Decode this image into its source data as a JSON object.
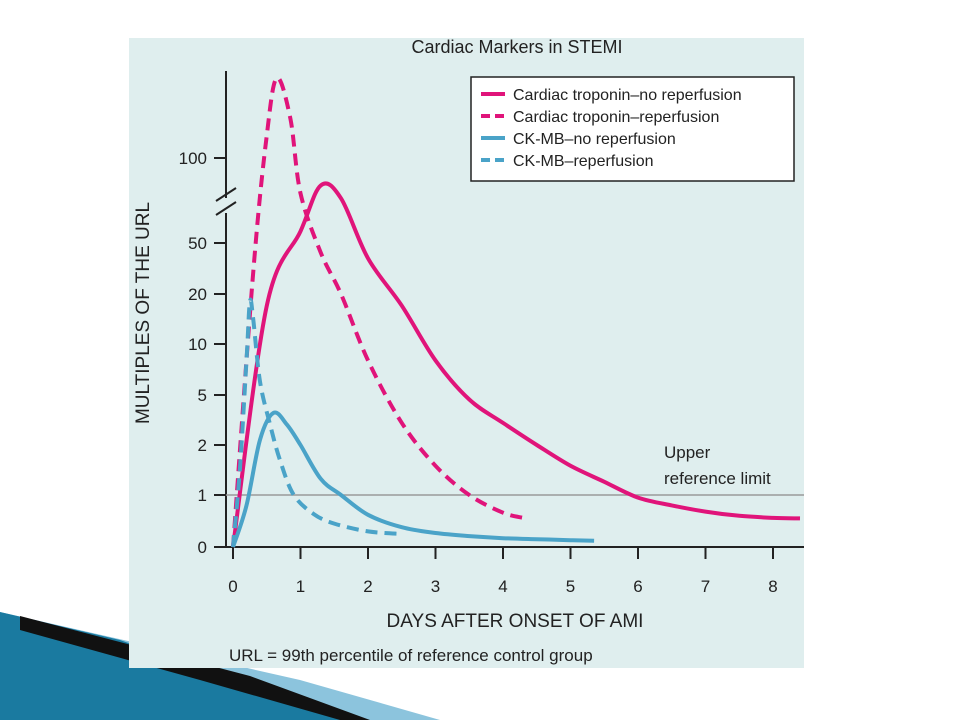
{
  "colors": {
    "panel_bg": "#dfeeee",
    "troponin": "#e0147a",
    "ckmb": "#4aa3c8",
    "axis": "#222222",
    "url_line": "#9a9a9a",
    "deco_dark": "#111111",
    "deco_teal": "#1a7aa0",
    "deco_light": "#8cc4dd"
  },
  "chart_data": {
    "type": "line",
    "title": "Cardiac Markers in STEMI",
    "xlabel": "DAYS AFTER ONSET OF AMI",
    "ylabel": "MULTIPLES OF THE URL",
    "footnote": "URL = 99th percentile of reference control group",
    "xlim": [
      0,
      8.4
    ],
    "x_ticks": [
      "0",
      "1",
      "2",
      "3",
      "4",
      "5",
      "6",
      "7",
      "8"
    ],
    "y_scale": "categorical (broken axis)",
    "y_ticks": [
      "0",
      "1",
      "2",
      "5",
      "10",
      "20",
      "50",
      "100"
    ],
    "y_axis_break": "between 50 and 100",
    "reference_line": {
      "y": 1,
      "label_line1": "Upper",
      "label_line2": "reference limit"
    },
    "grid": false,
    "legend_position": "top-right",
    "series": [
      {
        "name": "Cardiac troponin–no reperfusion",
        "style": "solid",
        "color": "#e0147a",
        "points": [
          [
            0,
            0
          ],
          [
            0.5,
            17
          ],
          [
            1.0,
            55
          ],
          [
            1.3,
            80
          ],
          [
            1.6,
            72
          ],
          [
            2.0,
            38
          ],
          [
            2.5,
            17
          ],
          [
            3.0,
            8
          ],
          [
            3.5,
            4.6
          ],
          [
            4.0,
            3
          ],
          [
            4.5,
            2
          ],
          [
            5.0,
            1.5
          ],
          [
            5.5,
            1.2
          ],
          [
            6.0,
            0.95
          ],
          [
            6.5,
            0.8
          ],
          [
            7.0,
            0.68
          ],
          [
            7.5,
            0.6
          ],
          [
            8.0,
            0.56
          ],
          [
            8.4,
            0.55
          ]
        ]
      },
      {
        "name": "Cardiac troponin–reperfusion",
        "style": "dashed",
        "color": "#e0147a",
        "points": [
          [
            0,
            0
          ],
          [
            0.3,
            30
          ],
          [
            0.5,
            110
          ],
          [
            0.65,
            140
          ],
          [
            0.85,
            118
          ],
          [
            1.0,
            75
          ],
          [
            1.3,
            42
          ],
          [
            1.6,
            20
          ],
          [
            2.0,
            8
          ],
          [
            2.5,
            3
          ],
          [
            3.0,
            1.5
          ],
          [
            3.5,
            1.0
          ],
          [
            4.0,
            0.66
          ],
          [
            4.3,
            0.56
          ]
        ]
      },
      {
        "name": "CK-MB–no reperfusion",
        "style": "solid",
        "color": "#4aa3c8",
        "points": [
          [
            0,
            0
          ],
          [
            0.2,
            0.8
          ],
          [
            0.4,
            2.2
          ],
          [
            0.6,
            3.6
          ],
          [
            0.8,
            2.9
          ],
          [
            1.0,
            2.0
          ],
          [
            1.3,
            1.25
          ],
          [
            1.6,
            1.0
          ],
          [
            2.0,
            0.62
          ],
          [
            2.5,
            0.38
          ],
          [
            3.0,
            0.27
          ],
          [
            3.5,
            0.21
          ],
          [
            4.0,
            0.17
          ],
          [
            4.5,
            0.15
          ],
          [
            5.0,
            0.13
          ],
          [
            5.35,
            0.12
          ]
        ]
      },
      {
        "name": "CK-MB–reperfusion",
        "style": "dashed",
        "color": "#4aa3c8",
        "points": [
          [
            0,
            0
          ],
          [
            0.1,
            1.4
          ],
          [
            0.2,
            8
          ],
          [
            0.25,
            18
          ],
          [
            0.3,
            14
          ],
          [
            0.4,
            6
          ],
          [
            0.55,
            2.9
          ],
          [
            0.7,
            1.6
          ],
          [
            0.9,
            1.0
          ],
          [
            1.2,
            0.63
          ],
          [
            1.5,
            0.45
          ],
          [
            2.0,
            0.3
          ],
          [
            2.5,
            0.25
          ]
        ]
      }
    ]
  }
}
